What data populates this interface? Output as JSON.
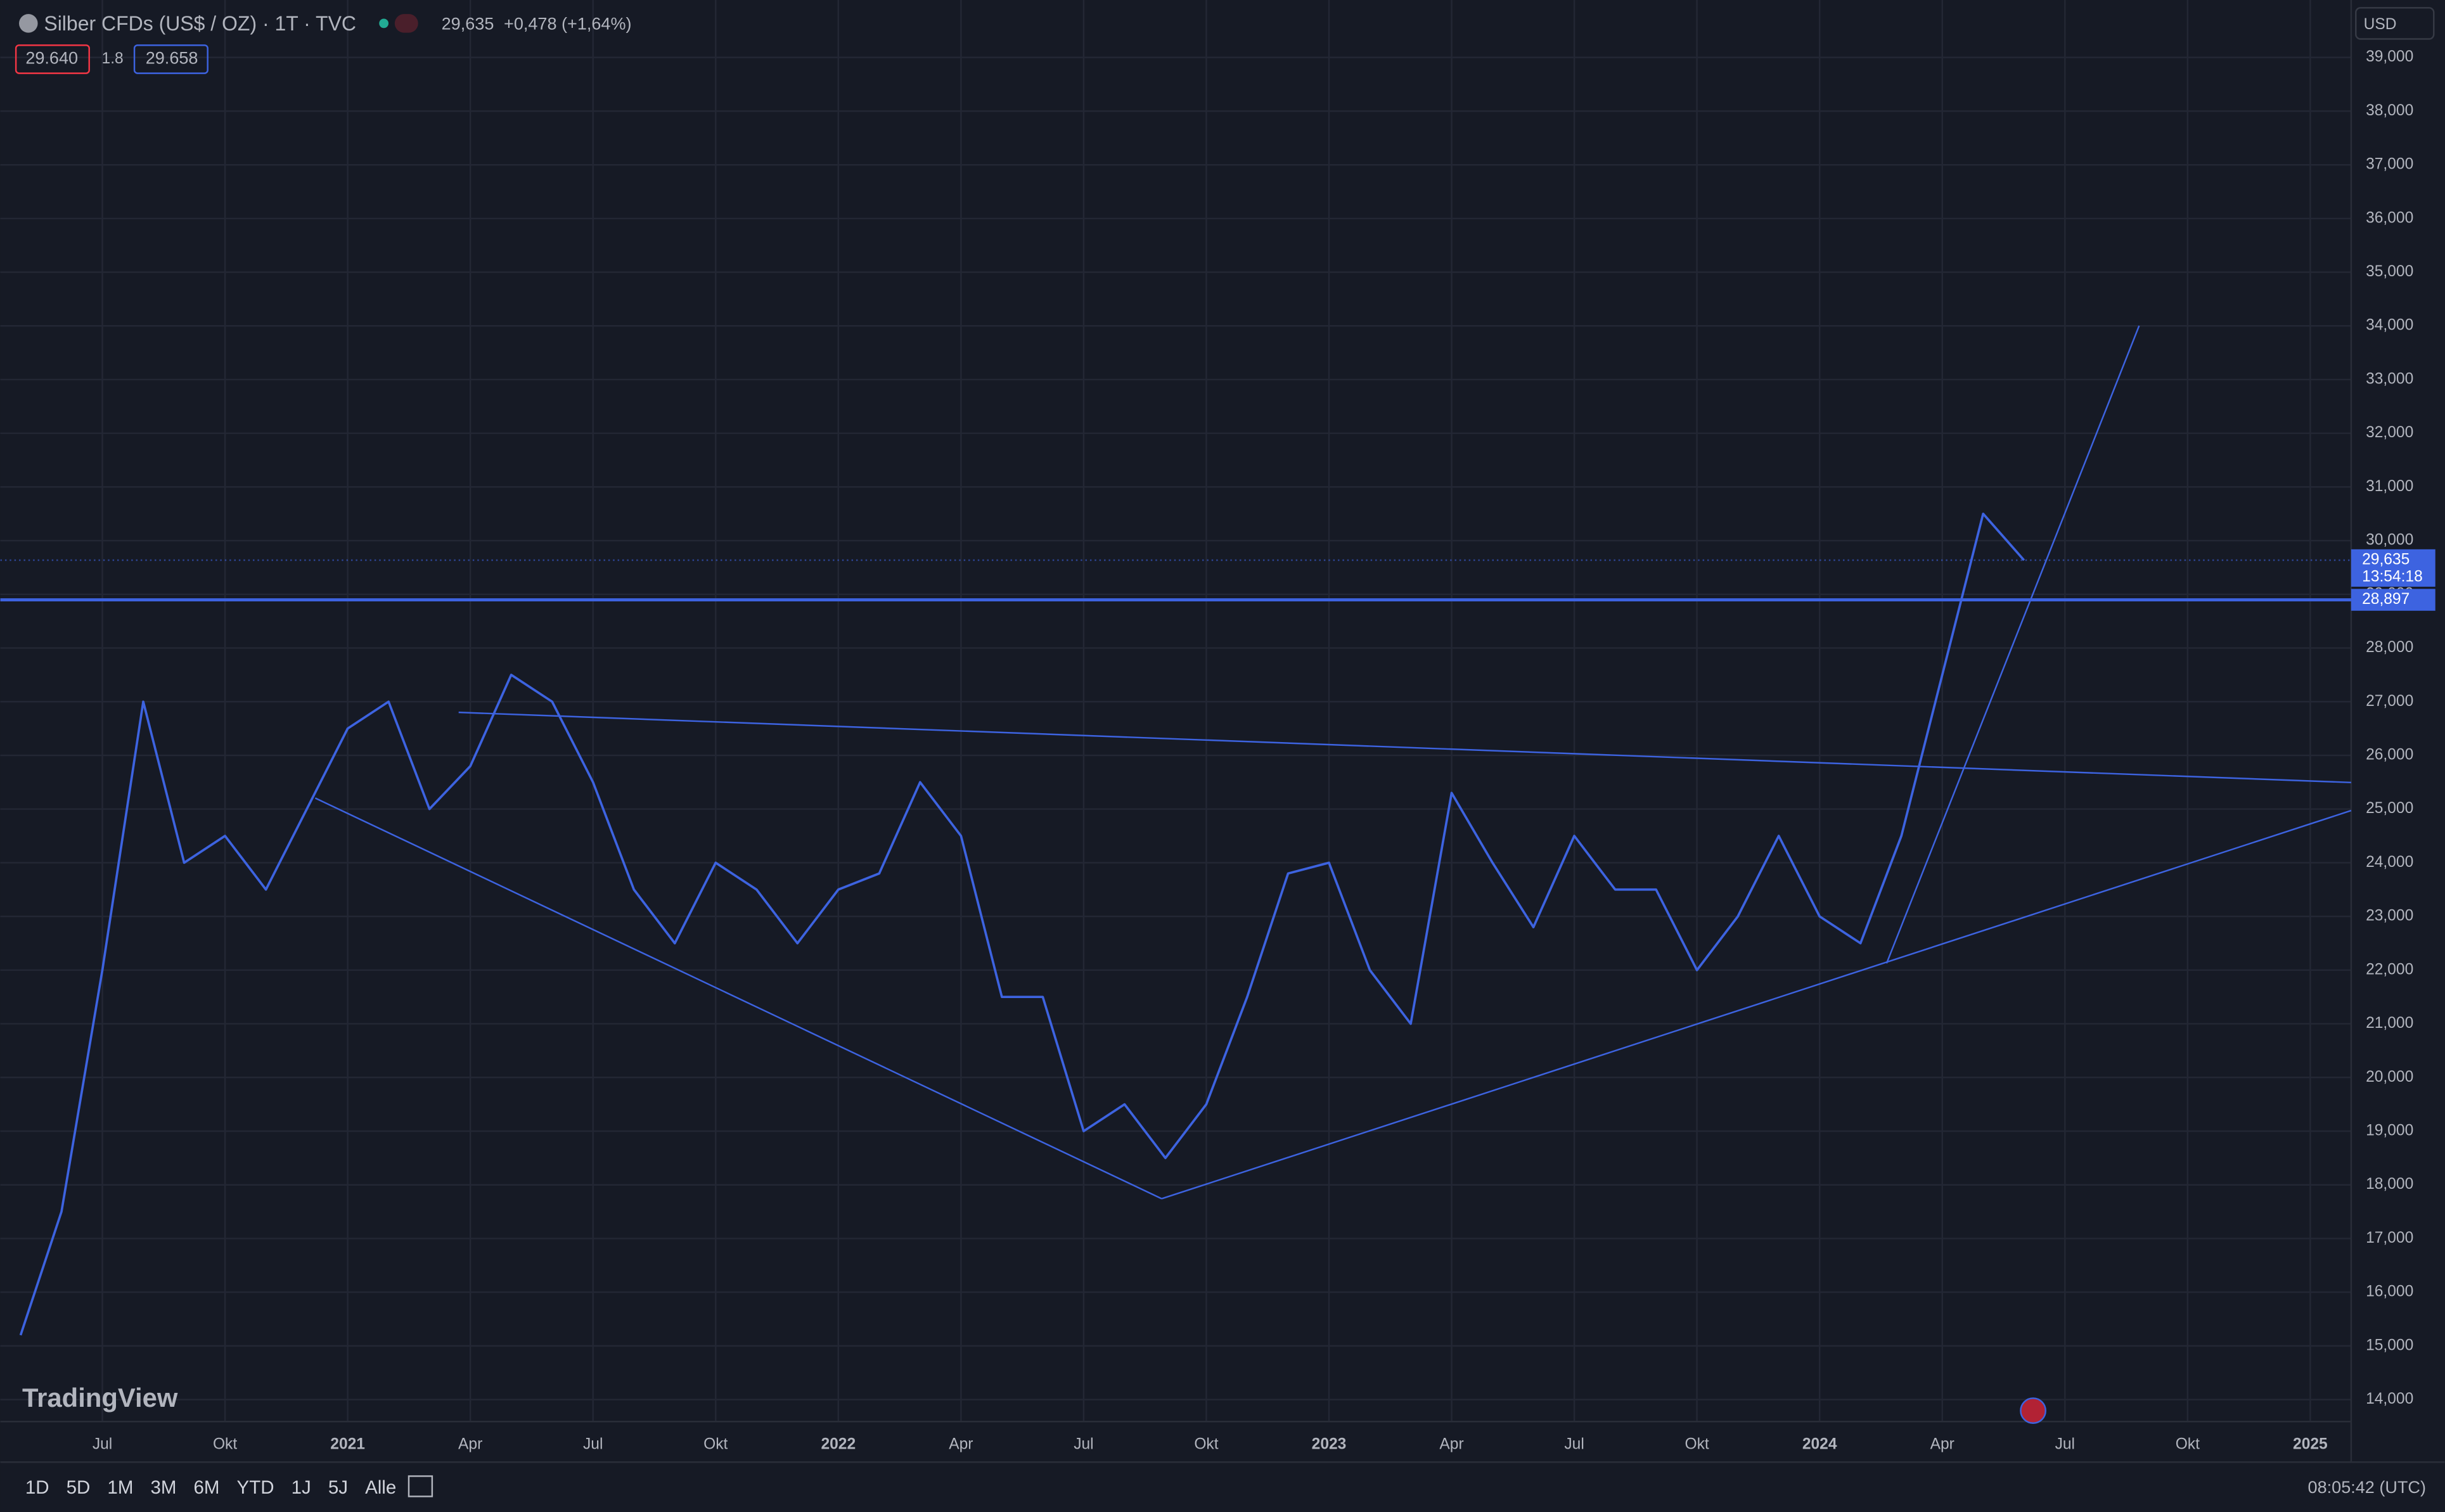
{
  "chart_data": {
    "type": "line",
    "title": "Silber CFDs (US$ / OZ) · 1T · TVC",
    "last_price": "29,635",
    "change": "+0,478 (+1,64%)",
    "bid": "29.640",
    "spread": "1.8",
    "ask": "29.658",
    "currency": "USD",
    "price_label": {
      "value": 29.635,
      "label": "29,635"
    },
    "countdown": "13:54:18",
    "horizontal_line": {
      "value": 28.897,
      "label": "28,897"
    },
    "logo": "TradingView",
    "ranges": [
      "1D",
      "5D",
      "1M",
      "3M",
      "6M",
      "YTD",
      "1J",
      "5J",
      "Alle"
    ],
    "clock": "08:05:42 (UTC)",
    "color": "#3d63e0",
    "x": [
      "2020-05",
      "2020-06",
      "2020-07",
      "2020-08",
      "2020-09",
      "2020-10",
      "2020-11",
      "2020-12",
      "2021-01",
      "2021-02",
      "2021-03",
      "2021-04",
      "2021-05",
      "2021-06",
      "2021-07",
      "2021-08",
      "2021-09",
      "2021-10",
      "2021-11",
      "2021-12",
      "2022-01",
      "2022-02",
      "2022-03",
      "2022-04",
      "2022-05",
      "2022-06",
      "2022-07",
      "2022-08",
      "2022-09",
      "2022-10",
      "2022-11",
      "2022-12",
      "2023-01",
      "2023-02",
      "2023-03",
      "2023-04",
      "2023-05",
      "2023-06",
      "2023-07",
      "2023-08",
      "2023-09",
      "2023-10",
      "2023-11",
      "2023-12",
      "2024-01",
      "2024-02",
      "2024-03",
      "2024-04",
      "2024-05",
      "2024-06"
    ],
    "values": [
      15.2,
      17.5,
      22,
      27,
      24,
      24.5,
      23.5,
      25,
      26.5,
      27,
      25,
      25.8,
      27.5,
      27,
      25.5,
      23.5,
      22.5,
      24,
      23.5,
      22.5,
      23.5,
      23.8,
      25.5,
      24.5,
      21.5,
      21.5,
      19,
      19.5,
      18.5,
      19.5,
      21.5,
      23.8,
      24,
      22,
      21,
      25.3,
      24,
      22.8,
      24.5,
      23.5,
      23.5,
      22,
      23,
      24.5,
      23,
      22.5,
      24.5,
      27.5,
      30.5,
      29.635
    ],
    "xlim": [
      "2020-05",
      "2025-02"
    ],
    "xticks": [
      {
        "value": "2020-07",
        "label": "Jul"
      },
      {
        "value": "2020-10",
        "label": "Okt"
      },
      {
        "value": "2021-01",
        "label": "2021"
      },
      {
        "value": "2021-04",
        "label": "Apr"
      },
      {
        "value": "2021-07",
        "label": "Jul"
      },
      {
        "value": "2021-10",
        "label": "Okt"
      },
      {
        "value": "2022-01",
        "label": "2022"
      },
      {
        "value": "2022-04",
        "label": "Apr"
      },
      {
        "value": "2022-07",
        "label": "Jul"
      },
      {
        "value": "2022-10",
        "label": "Okt"
      },
      {
        "value": "2023-01",
        "label": "2023"
      },
      {
        "value": "2023-04",
        "label": "Apr"
      },
      {
        "value": "2023-07",
        "label": "Jul"
      },
      {
        "value": "2023-10",
        "label": "Okt"
      },
      {
        "value": "2024-01",
        "label": "2024"
      },
      {
        "value": "2024-04",
        "label": "Apr"
      },
      {
        "value": "2024-07",
        "label": "Jul"
      },
      {
        "value": "2024-10",
        "label": "Okt"
      },
      {
        "value": "2025-01",
        "label": "2025"
      }
    ],
    "ylim": [
      13.59,
      40.07
    ],
    "yticks": [
      {
        "value": 14,
        "label": "14,000"
      },
      {
        "value": 15,
        "label": "15,000"
      },
      {
        "value": 16,
        "label": "16,000"
      },
      {
        "value": 17,
        "label": "17,000"
      },
      {
        "value": 18,
        "label": "18,000"
      },
      {
        "value": 19,
        "label": "19,000"
      },
      {
        "value": 20,
        "label": "20,000"
      },
      {
        "value": 21,
        "label": "21,000"
      },
      {
        "value": 22,
        "label": "22,000"
      },
      {
        "value": 23,
        "label": "23,000"
      },
      {
        "value": 24,
        "label": "24,000"
      },
      {
        "value": 25,
        "label": "25,000"
      },
      {
        "value": 26,
        "label": "26,000"
      },
      {
        "value": 27,
        "label": "27,000"
      },
      {
        "value": 28,
        "label": "28,000"
      },
      {
        "value": 29,
        "label": "29,000"
      },
      {
        "value": 30,
        "label": "30,000"
      },
      {
        "value": 31,
        "label": "31,000"
      },
      {
        "value": 32,
        "label": "32,000"
      },
      {
        "value": 33,
        "label": "33,000"
      },
      {
        "value": 34,
        "label": "34,000"
      },
      {
        "value": 35,
        "label": "35,000"
      },
      {
        "value": 36,
        "label": "36,000"
      },
      {
        "value": 37,
        "label": "37,000"
      },
      {
        "value": 38,
        "label": "38,000"
      },
      {
        "value": 39,
        "label": "39,000"
      }
    ],
    "grid": true
  }
}
